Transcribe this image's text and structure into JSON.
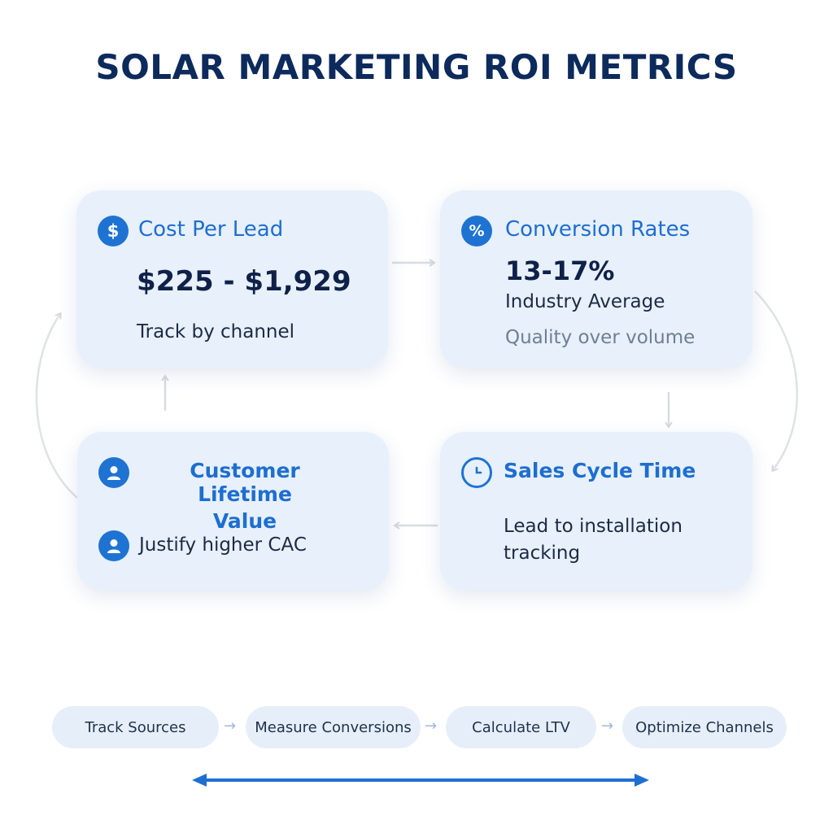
{
  "title": "SOLAR MARKETING ROI METRICS",
  "colors": {
    "title": "#0d2a5c",
    "accent": "#1e73d2",
    "card_bg": "#e7f0fb",
    "connector": "#d8dce2",
    "timeline_arrow": "#1e6fd0"
  },
  "cards": {
    "cost_per_lead": {
      "icon": "dollar-icon",
      "title": "Cost Per Lead",
      "value": "$225 - $1,929",
      "note": "Track by channel"
    },
    "conversion_rates": {
      "icon": "percent-icon",
      "title": "Conversion Rates",
      "value": "13-17%",
      "subtitle": "Industry Average",
      "note": "Quality over volume"
    },
    "customer_lifetime_value": {
      "icon": "user-icon",
      "title_line1": "Customer Lifetime",
      "title_line2": "Value",
      "note": "Justify higher CAC"
    },
    "sales_cycle_time": {
      "icon": "clock-icon",
      "title": "Sales Cycle Time",
      "note_line1": "Lead to installation",
      "note_line2": "tracking"
    }
  },
  "steps": [
    "Track Sources",
    "Measure Conversions",
    "Calculate LTV",
    "Optimize Channels"
  ]
}
